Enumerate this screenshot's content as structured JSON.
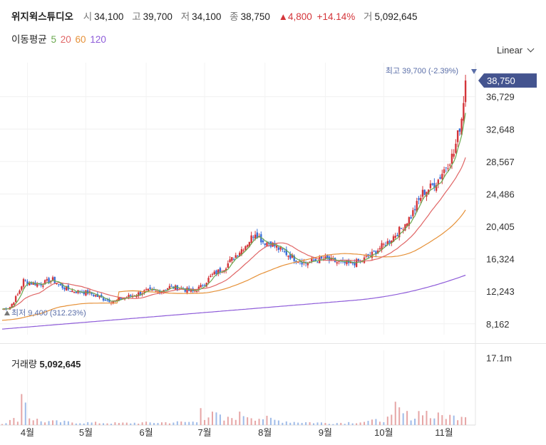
{
  "header": {
    "name": "위지윅스튜디오",
    "open_label": "시",
    "open": "34,100",
    "high_label": "고",
    "high": "39,700",
    "low_label": "저",
    "low": "34,100",
    "close_label": "종",
    "close": "38,750",
    "change": "▲4,800",
    "change_pct": "+14.14%",
    "volume_label": "거",
    "volume": "5,092,645"
  },
  "ma_legend": {
    "label": "이동평균",
    "periods": [
      {
        "text": "5",
        "color": "#6aa84f"
      },
      {
        "text": "20",
        "color": "#e06666"
      },
      {
        "text": "60",
        "color": "#e69138"
      },
      {
        "text": "120",
        "color": "#8e5cd9"
      }
    ]
  },
  "scale_selector": {
    "value": "Linear"
  },
  "volume_panel": {
    "label": "거래량",
    "value": "5,092,645",
    "axis_tick": "17.1m"
  },
  "chart_data": {
    "type": "candlestick",
    "y_ticks": [
      8162,
      12243,
      16324,
      20405,
      24486,
      28567,
      32648,
      36729
    ],
    "y_tick_labels": [
      "8,162",
      "12,243",
      "16,324",
      "20,405",
      "24,486",
      "28,567",
      "32,648",
      "36,729"
    ],
    "ylim": [
      6800,
      41000
    ],
    "x_labels": [
      {
        "label": "4월",
        "day": 13
      },
      {
        "label": "5월",
        "day": 43
      },
      {
        "label": "6월",
        "day": 74
      },
      {
        "label": "7월",
        "day": 104
      },
      {
        "label": "8월",
        "day": 135
      },
      {
        "label": "9월",
        "day": 166
      },
      {
        "label": "10월",
        "day": 196
      },
      {
        "label": "11월",
        "day": 227
      }
    ],
    "x_range": [
      0,
      242
    ],
    "last_price": 38750,
    "last_price_label": "38,750",
    "max_label": "최고 39,700 (-2.39%)",
    "max_value": 39700,
    "min_label": "최저 9,400 (312.23%)",
    "min_value": 9400,
    "colors": {
      "up": "#d4353a",
      "down": "#3a6fd8",
      "ma5": "#6aa84f",
      "ma20": "#e06666",
      "ma60": "#e69138",
      "ma120": "#8e5cd9",
      "badge": "#44548f"
    },
    "price_keypoints": [
      [
        0,
        10000
      ],
      [
        4,
        10300
      ],
      [
        8,
        11800
      ],
      [
        11,
        13600
      ],
      [
        14,
        13300
      ],
      [
        20,
        13200
      ],
      [
        26,
        13700
      ],
      [
        30,
        12900
      ],
      [
        36,
        12300
      ],
      [
        44,
        12100
      ],
      [
        52,
        11300
      ],
      [
        58,
        11000
      ],
      [
        62,
        11400
      ],
      [
        68,
        11800
      ],
      [
        74,
        12300
      ],
      [
        80,
        12200
      ],
      [
        86,
        12800
      ],
      [
        92,
        12600
      ],
      [
        98,
        12200
      ],
      [
        102,
        12800
      ],
      [
        108,
        14300
      ],
      [
        114,
        15200
      ],
      [
        120,
        16800
      ],
      [
        126,
        18300
      ],
      [
        130,
        19700
      ],
      [
        134,
        18500
      ],
      [
        138,
        18300
      ],
      [
        142,
        17600
      ],
      [
        146,
        17000
      ],
      [
        150,
        16400
      ],
      [
        156,
        15800
      ],
      [
        160,
        16100
      ],
      [
        166,
        16300
      ],
      [
        172,
        15900
      ],
      [
        178,
        15700
      ],
      [
        184,
        16000
      ],
      [
        190,
        16900
      ],
      [
        194,
        17700
      ],
      [
        198,
        18400
      ],
      [
        204,
        19900
      ],
      [
        210,
        21700
      ],
      [
        216,
        24600
      ],
      [
        220,
        25300
      ],
      [
        224,
        26300
      ],
      [
        228,
        28000
      ],
      [
        232,
        29600
      ],
      [
        236,
        34100
      ],
      [
        238,
        38750
      ]
    ],
    "volume_keypoints": [
      [
        0,
        0.6
      ],
      [
        9,
        2.2
      ],
      [
        10,
        9.5
      ],
      [
        11,
        12.5
      ],
      [
        14,
        2.5
      ],
      [
        20,
        1.2
      ],
      [
        40,
        0.8
      ],
      [
        60,
        0.6
      ],
      [
        80,
        0.8
      ],
      [
        100,
        1.0
      ],
      [
        101,
        12.5
      ],
      [
        104,
        2.5
      ],
      [
        108,
        3.0
      ],
      [
        110,
        3.2
      ],
      [
        114,
        1.5
      ],
      [
        120,
        2.8
      ],
      [
        125,
        3.5
      ],
      [
        130,
        2.5
      ],
      [
        136,
        2.0
      ],
      [
        140,
        1.5
      ],
      [
        150,
        1.0
      ],
      [
        170,
        0.6
      ],
      [
        190,
        1.2
      ],
      [
        200,
        2.2
      ],
      [
        201,
        6.0
      ],
      [
        206,
        3.5
      ],
      [
        212,
        2.5
      ],
      [
        216,
        5.5
      ],
      [
        220,
        2.5
      ],
      [
        228,
        3.0
      ],
      [
        232,
        2.5
      ],
      [
        238,
        4.0
      ]
    ],
    "volume_ylim": [
      0,
      19
    ]
  }
}
